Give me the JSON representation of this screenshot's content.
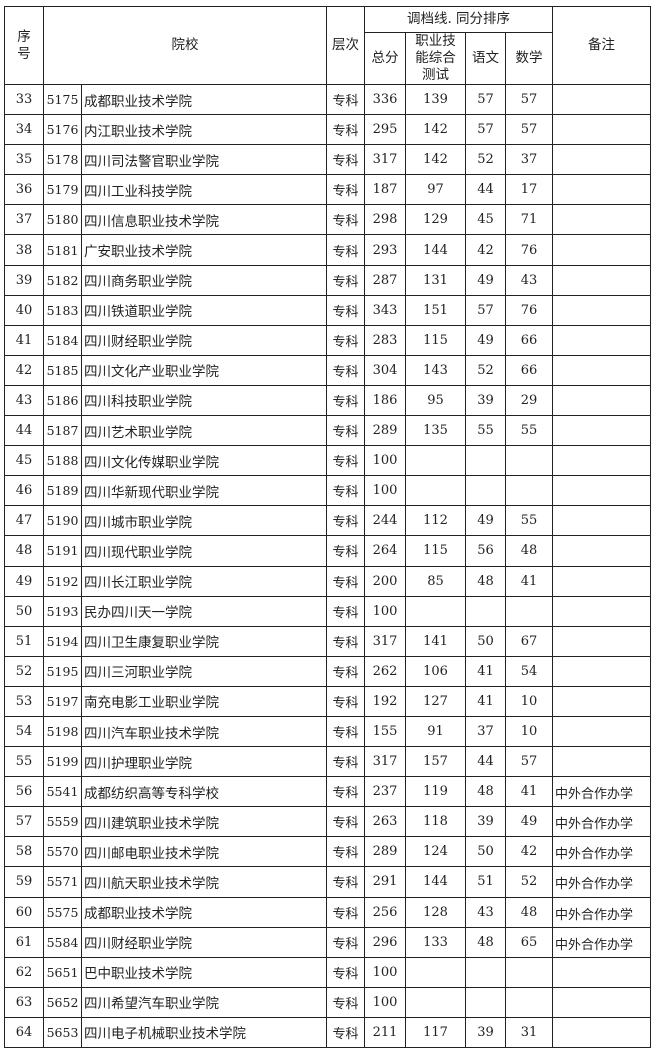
{
  "header": {
    "seq": "序号",
    "school": "院校",
    "level": "层次",
    "group": "调档线. 同分排序",
    "total": "总分",
    "skill": "职业技能综合测试",
    "chinese": "语文",
    "math": "数学",
    "note": "备注"
  },
  "rows": [
    [
      "33",
      "5175",
      "成都职业技术学院",
      "专科",
      "336",
      "139",
      "57",
      "57",
      ""
    ],
    [
      "34",
      "5176",
      "内江职业技术学院",
      "专科",
      "295",
      "142",
      "57",
      "57",
      ""
    ],
    [
      "35",
      "5178",
      "四川司法警官职业学院",
      "专科",
      "317",
      "142",
      "52",
      "37",
      ""
    ],
    [
      "36",
      "5179",
      "四川工业科技学院",
      "专科",
      "187",
      "97",
      "44",
      "17",
      ""
    ],
    [
      "37",
      "5180",
      "四川信息职业技术学院",
      "专科",
      "298",
      "129",
      "45",
      "71",
      ""
    ],
    [
      "38",
      "5181",
      "广安职业技术学院",
      "专科",
      "293",
      "144",
      "42",
      "76",
      ""
    ],
    [
      "39",
      "5182",
      "四川商务职业学院",
      "专科",
      "287",
      "131",
      "49",
      "43",
      ""
    ],
    [
      "40",
      "5183",
      "四川铁道职业学院",
      "专科",
      "343",
      "151",
      "57",
      "76",
      ""
    ],
    [
      "41",
      "5184",
      "四川财经职业学院",
      "专科",
      "283",
      "115",
      "49",
      "66",
      ""
    ],
    [
      "42",
      "5185",
      "四川文化产业职业学院",
      "专科",
      "304",
      "143",
      "52",
      "66",
      ""
    ],
    [
      "43",
      "5186",
      "四川科技职业学院",
      "专科",
      "186",
      "95",
      "39",
      "29",
      ""
    ],
    [
      "44",
      "5187",
      "四川艺术职业学院",
      "专科",
      "289",
      "135",
      "55",
      "55",
      ""
    ],
    [
      "45",
      "5188",
      "四川文化传媒职业学院",
      "专科",
      "100",
      "",
      "",
      "",
      ""
    ],
    [
      "46",
      "5189",
      "四川华新现代职业学院",
      "专科",
      "100",
      "",
      "",
      "",
      ""
    ],
    [
      "47",
      "5190",
      "四川城市职业学院",
      "专科",
      "244",
      "112",
      "49",
      "55",
      ""
    ],
    [
      "48",
      "5191",
      "四川现代职业学院",
      "专科",
      "264",
      "115",
      "56",
      "48",
      ""
    ],
    [
      "49",
      "5192",
      "四川长江职业学院",
      "专科",
      "200",
      "85",
      "48",
      "41",
      ""
    ],
    [
      "50",
      "5193",
      "民办四川天一学院",
      "专科",
      "100",
      "",
      "",
      "",
      ""
    ],
    [
      "51",
      "5194",
      "四川卫生康复职业学院",
      "专科",
      "317",
      "141",
      "50",
      "67",
      ""
    ],
    [
      "52",
      "5195",
      "四川三河职业学院",
      "专科",
      "262",
      "106",
      "41",
      "54",
      ""
    ],
    [
      "53",
      "5197",
      "南充电影工业职业学院",
      "专科",
      "192",
      "127",
      "41",
      "10",
      ""
    ],
    [
      "54",
      "5198",
      "四川汽车职业技术学院",
      "专科",
      "155",
      "91",
      "37",
      "10",
      ""
    ],
    [
      "55",
      "5199",
      "四川护理职业学院",
      "专科",
      "317",
      "157",
      "44",
      "57",
      ""
    ],
    [
      "56",
      "5541",
      "成都纺织高等专科学校",
      "专科",
      "237",
      "119",
      "48",
      "41",
      "中外合作办学"
    ],
    [
      "57",
      "5559",
      "四川建筑职业技术学院",
      "专科",
      "263",
      "118",
      "39",
      "49",
      "中外合作办学"
    ],
    [
      "58",
      "5570",
      "四川邮电职业技术学院",
      "专科",
      "289",
      "124",
      "50",
      "42",
      "中外合作办学"
    ],
    [
      "59",
      "5571",
      "四川航天职业技术学院",
      "专科",
      "291",
      "144",
      "51",
      "52",
      "中外合作办学"
    ],
    [
      "60",
      "5575",
      "成都职业技术学院",
      "专科",
      "256",
      "128",
      "43",
      "48",
      "中外合作办学"
    ],
    [
      "61",
      "5584",
      "四川财经职业学院",
      "专科",
      "296",
      "133",
      "48",
      "65",
      "中外合作办学"
    ],
    [
      "62",
      "5651",
      "巴中职业技术学院",
      "专科",
      "100",
      "",
      "",
      "",
      ""
    ],
    [
      "63",
      "5652",
      "四川希望汽车职业学院",
      "专科",
      "100",
      "",
      "",
      "",
      ""
    ],
    [
      "64",
      "5653",
      "四川电子机械职业技术学院",
      "专科",
      "211",
      "117",
      "39",
      "31",
      ""
    ]
  ]
}
